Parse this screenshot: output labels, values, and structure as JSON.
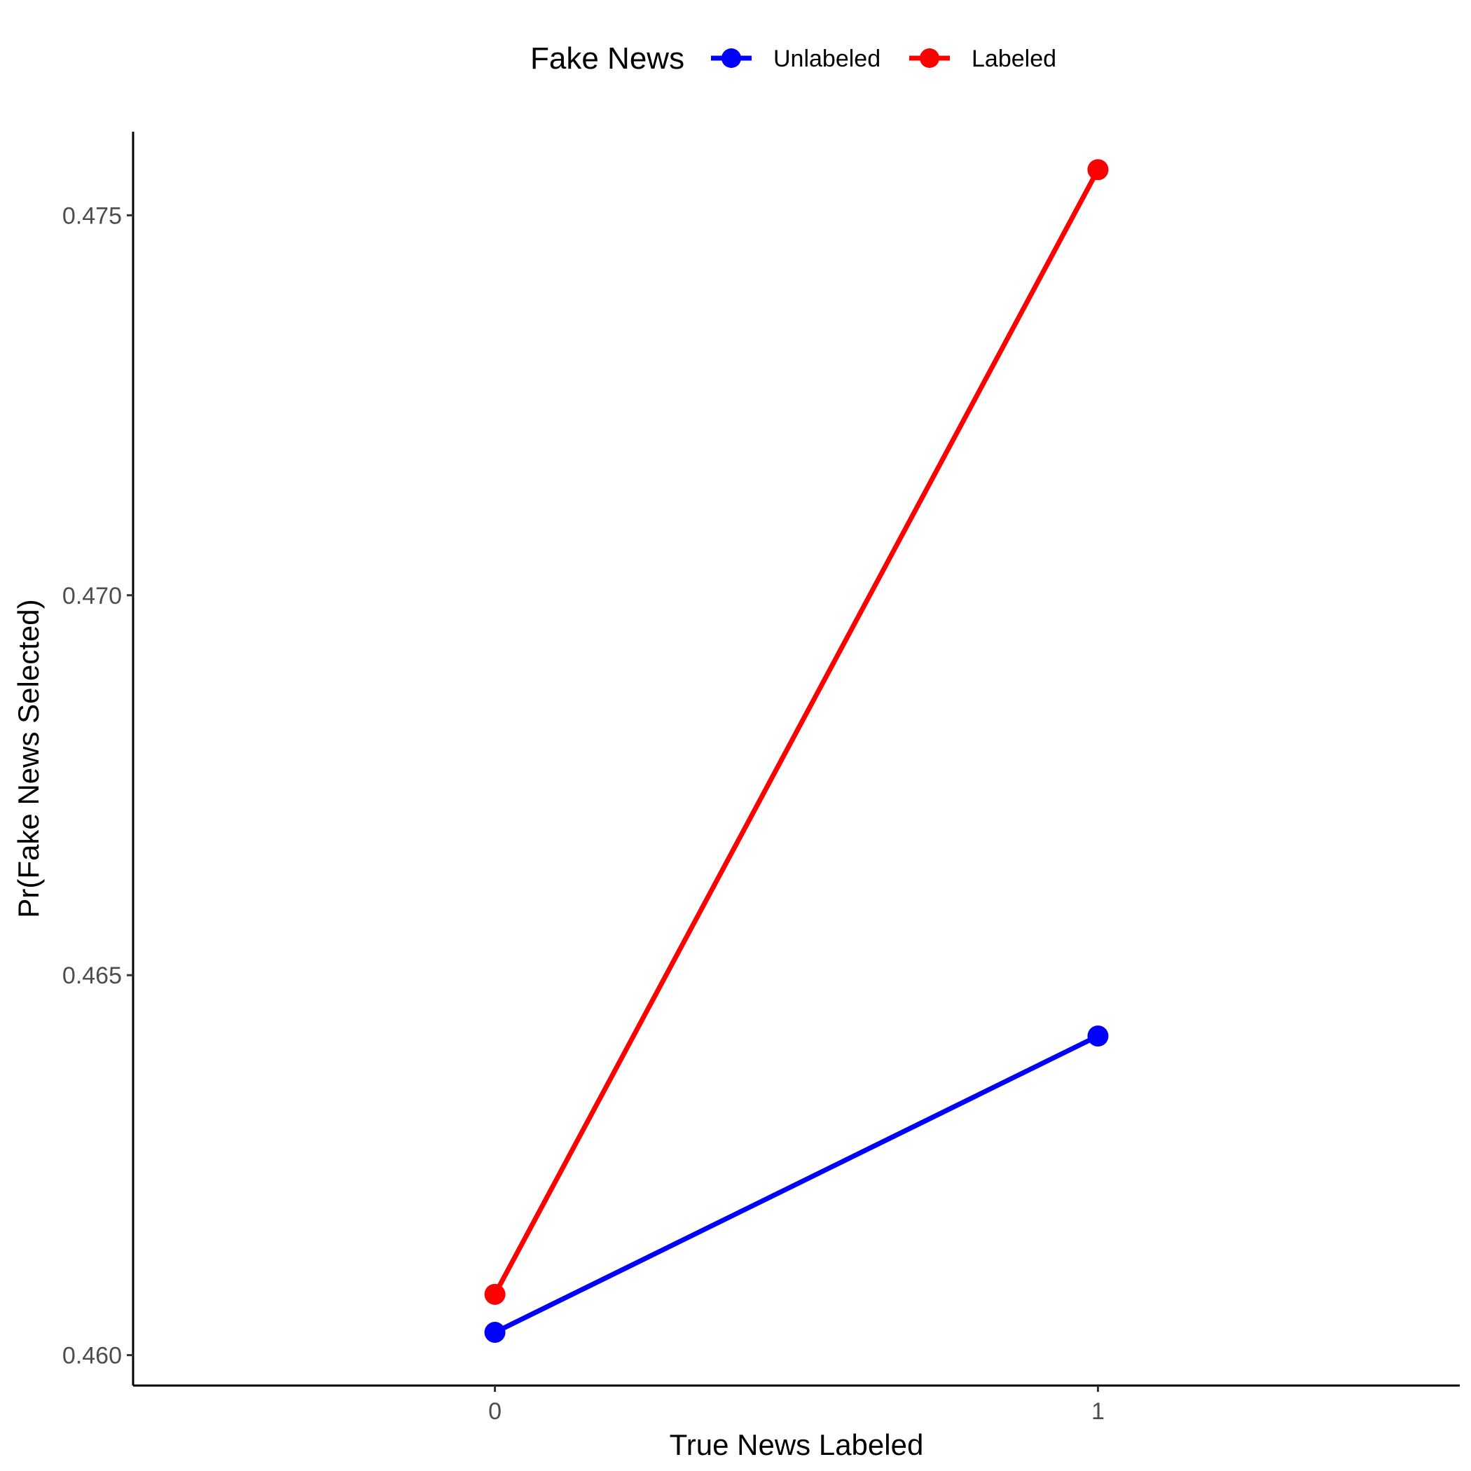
{
  "chart_data": {
    "type": "line",
    "xlabel": "True News Labeled",
    "ylabel": "Pr(Fake News Selected)",
    "x": [
      0,
      1
    ],
    "x_tick_labels": [
      "0",
      "1"
    ],
    "y_ticks": [
      0.46,
      0.465,
      0.47,
      0.475
    ],
    "y_tick_labels": [
      "0.460",
      "0.465",
      "0.470",
      "0.475"
    ],
    "xlim": [
      -0.6,
      1.6
    ],
    "ylim": [
      0.4596,
      0.4761
    ],
    "legend": {
      "title": "Fake News",
      "position": "top",
      "items": [
        "Unlabeled",
        "Labeled"
      ]
    },
    "series": [
      {
        "name": "Unlabeled",
        "color": "#0000ff",
        "values": [
          0.4603,
          0.4642
        ]
      },
      {
        "name": "Labeled",
        "color": "#ff0000",
        "values": [
          0.4608,
          0.4756
        ]
      }
    ],
    "grid": false
  }
}
